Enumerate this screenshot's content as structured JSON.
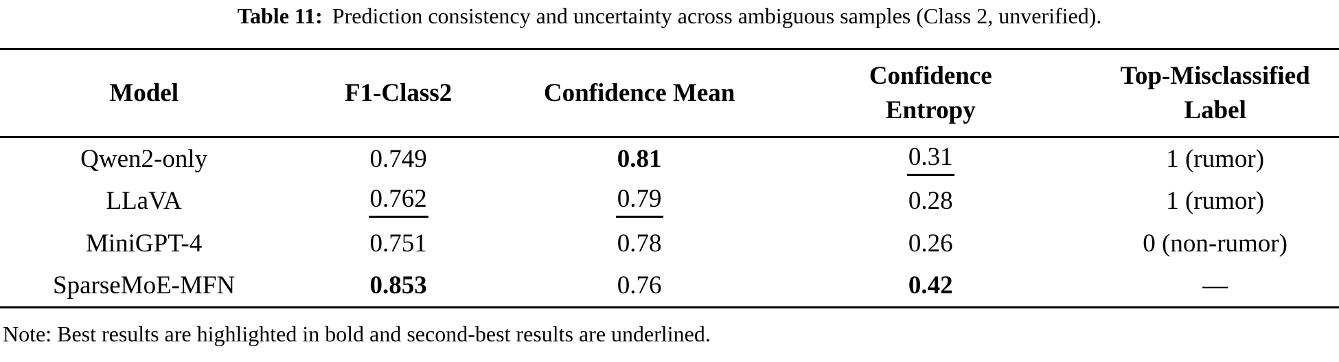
{
  "caption": {
    "label": "Table 11:",
    "text": "Prediction consistency and uncertainty across ambiguous samples (Class 2, unverified)."
  },
  "table": {
    "columns": [
      {
        "lines": [
          "Model"
        ]
      },
      {
        "lines": [
          "F1-Class2"
        ]
      },
      {
        "lines": [
          "Confidence Mean"
        ]
      },
      {
        "lines": [
          "Confidence",
          "Entropy"
        ]
      },
      {
        "lines": [
          "Top-Misclassified",
          "Label"
        ]
      }
    ],
    "rows": [
      {
        "cells": [
          {
            "text": "Qwen2-only",
            "emphasis": "none"
          },
          {
            "text": "0.749",
            "emphasis": "none"
          },
          {
            "text": "0.81",
            "emphasis": "bold"
          },
          {
            "text": "0.31",
            "emphasis": "underline"
          },
          {
            "text": "1 (rumor)",
            "emphasis": "none"
          }
        ]
      },
      {
        "cells": [
          {
            "text": "LLaVA",
            "emphasis": "none"
          },
          {
            "text": "0.762",
            "emphasis": "underline"
          },
          {
            "text": "0.79",
            "emphasis": "underline"
          },
          {
            "text": "0.28",
            "emphasis": "none"
          },
          {
            "text": "1 (rumor)",
            "emphasis": "none"
          }
        ]
      },
      {
        "cells": [
          {
            "text": "MiniGPT-4",
            "emphasis": "none"
          },
          {
            "text": "0.751",
            "emphasis": "none"
          },
          {
            "text": "0.78",
            "emphasis": "none"
          },
          {
            "text": "0.26",
            "emphasis": "none"
          },
          {
            "text": "0 (non-rumor)",
            "emphasis": "none"
          }
        ]
      },
      {
        "cells": [
          {
            "text": "SparseMoE-MFN",
            "emphasis": "none"
          },
          {
            "text": "0.853",
            "emphasis": "bold"
          },
          {
            "text": "0.76",
            "emphasis": "none"
          },
          {
            "text": "0.42",
            "emphasis": "bold"
          },
          {
            "text": "—",
            "emphasis": "none"
          }
        ]
      }
    ]
  },
  "note": {
    "text": "Note: Best results are highlighted in bold and second-best results are underlined."
  },
  "colors": {
    "text": "#000000",
    "background": "#ffffff",
    "rule": "#000000"
  }
}
